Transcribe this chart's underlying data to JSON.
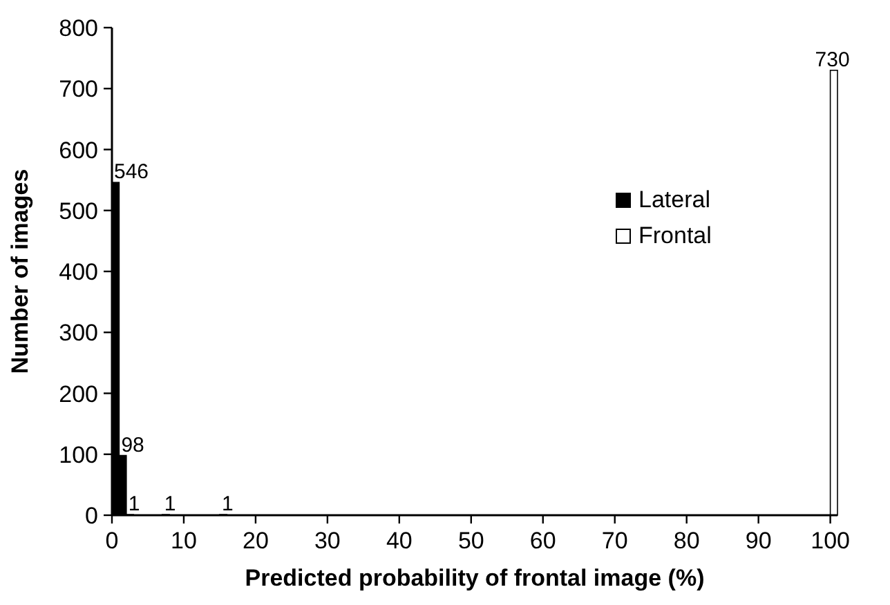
{
  "chart_data": {
    "type": "bar",
    "xlabel": "Predicted probability of  frontal image (%)",
    "ylabel": "Number of images",
    "series": [
      {
        "name": "Lateral",
        "color": "#000000",
        "x": [
          0.5,
          1.5,
          2.5,
          7.5,
          15.5
        ],
        "values": [
          546,
          98,
          1,
          1,
          1
        ]
      },
      {
        "name": "Frontal",
        "color": "#ffffff",
        "x": [
          100.5
        ],
        "values": [
          730
        ]
      }
    ],
    "xlim": [
      0,
      101
    ],
    "xticks": [
      0,
      10,
      20,
      30,
      40,
      50,
      60,
      70,
      80,
      90,
      100
    ],
    "ylim": [
      0,
      800
    ],
    "yticks": [
      0,
      100,
      200,
      300,
      400,
      500,
      600,
      700,
      800
    ],
    "data_labels": true,
    "grid": false,
    "legend": "top right"
  }
}
